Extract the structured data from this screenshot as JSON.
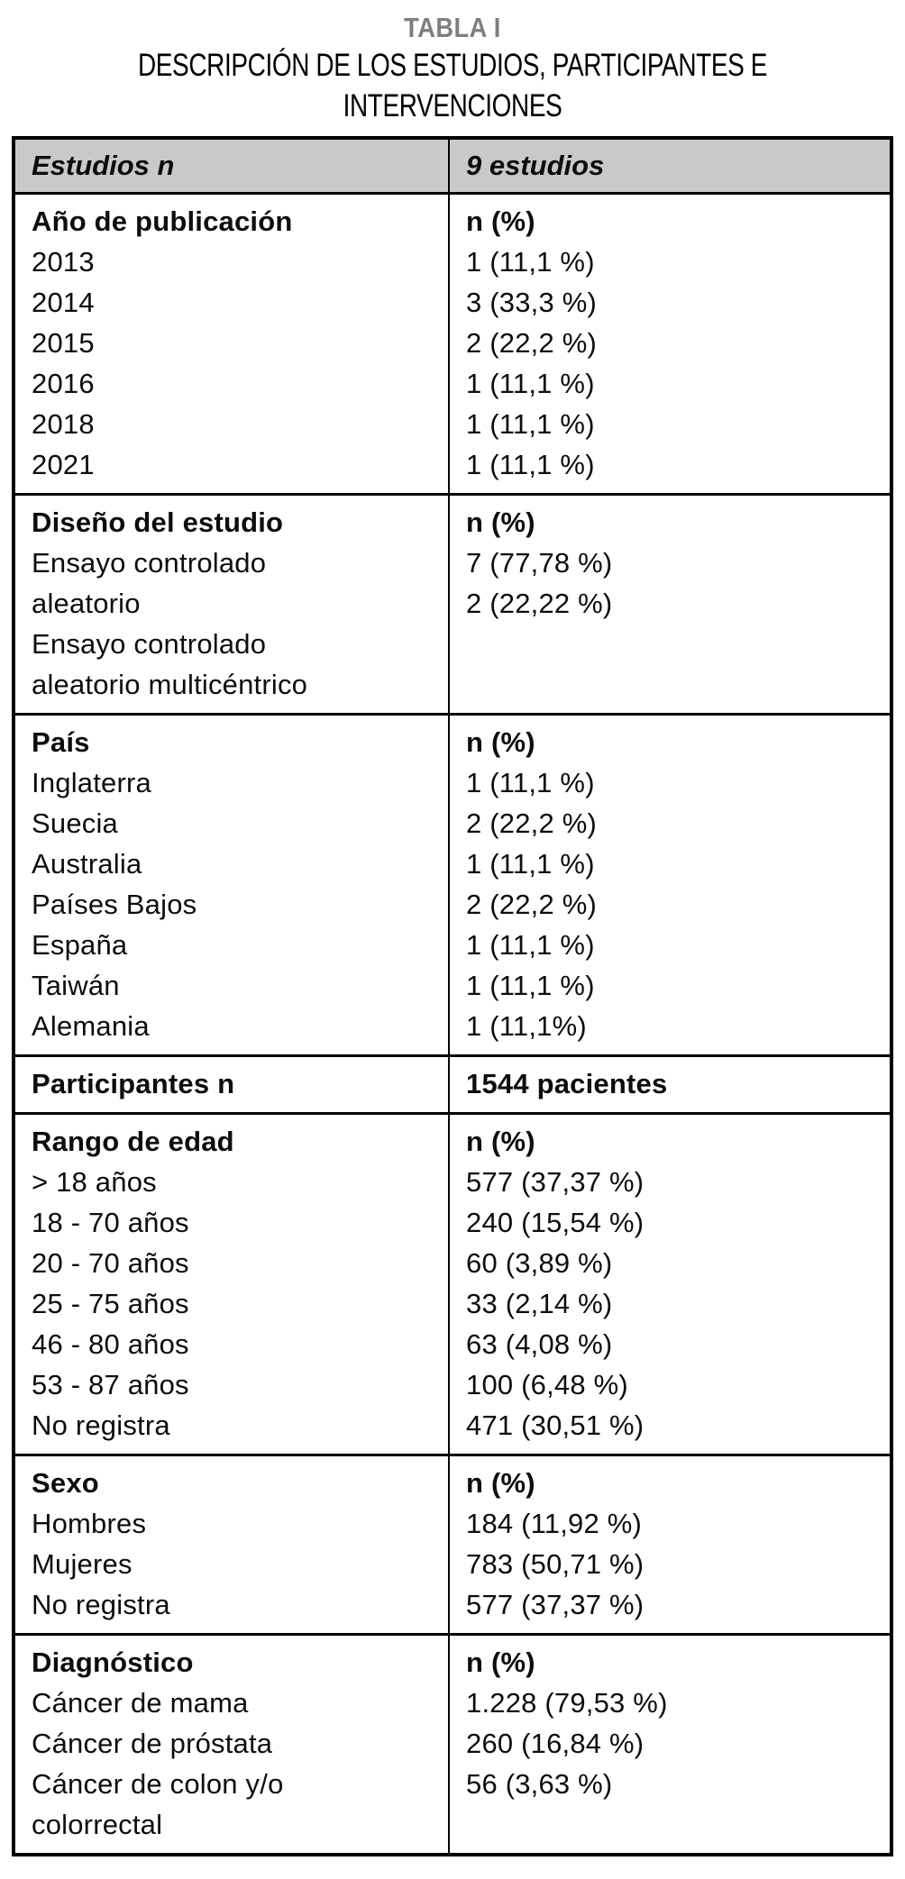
{
  "caption": {
    "title": "TABLA I",
    "subtitle_line1": "DESCRIPCIÓN DE LOS ESTUDIOS, PARTICIPANTES E",
    "subtitle_line2": "INTERVENCIONES"
  },
  "colors": {
    "title_gray": "#7e7e7e",
    "header_bg": "#c9c9c9",
    "border_black": "#000000",
    "text": "#0d0d0d"
  },
  "table": {
    "header": {
      "left": "Estudios n",
      "right": "9 estudios"
    },
    "sections": [
      {
        "name": "ano-de-publicacion",
        "left": [
          {
            "t": "Año de publicación",
            "b": true
          },
          {
            "t": "2013"
          },
          {
            "t": "2014"
          },
          {
            "t": "2015"
          },
          {
            "t": "2016"
          },
          {
            "t": "2018"
          },
          {
            "t": "2021"
          }
        ],
        "right": [
          {
            "t": "n (%)",
            "b": true
          },
          {
            "t": "1 (11,1 %)"
          },
          {
            "t": "3 (33,3 %)"
          },
          {
            "t": "2 (22,2 %)"
          },
          {
            "t": "1 (11,1 %)"
          },
          {
            "t": "1 (11,1 %)"
          },
          {
            "t": "1 (11,1 %)"
          }
        ]
      },
      {
        "name": "diseno-del-estudio",
        "left": [
          {
            "t": "Diseño del estudio",
            "b": true
          },
          {
            "t": "Ensayo controlado"
          },
          {
            "t": "aleatorio"
          },
          {
            "t": "Ensayo controlado"
          },
          {
            "t": "aleatorio multicéntrico"
          }
        ],
        "right": [
          {
            "t": "n (%)",
            "b": true
          },
          {
            "t": "7 (77,78 %)"
          },
          {
            "t": "2 (22,22 %)"
          }
        ]
      },
      {
        "name": "pais",
        "left": [
          {
            "t": "País",
            "b": true
          },
          {
            "t": "Inglaterra"
          },
          {
            "t": "Suecia"
          },
          {
            "t": "Australia"
          },
          {
            "t": "Países Bajos"
          },
          {
            "t": "España"
          },
          {
            "t": "Taiwán"
          },
          {
            "t": "Alemania"
          }
        ],
        "right": [
          {
            "t": "n (%)",
            "b": true
          },
          {
            "t": "1 (11,1 %)"
          },
          {
            "t": "2 (22,2 %)"
          },
          {
            "t": "1 (11,1 %)"
          },
          {
            "t": "2 (22,2 %)"
          },
          {
            "t": "1 (11,1 %)"
          },
          {
            "t": "1 (11,1 %)"
          },
          {
            "t": "1 (11,1%)"
          }
        ]
      },
      {
        "name": "participantes",
        "left": [
          {
            "t": "Participantes n",
            "b": true
          }
        ],
        "right": [
          {
            "t": "1544 pacientes",
            "b": true
          }
        ]
      },
      {
        "name": "rango-de-edad",
        "left": [
          {
            "t": "Rango de edad",
            "b": true
          },
          {
            "t": "> 18 años"
          },
          {
            "t": "18 - 70 años"
          },
          {
            "t": "20 - 70 años"
          },
          {
            "t": "25 - 75 años"
          },
          {
            "t": "46 - 80 años"
          },
          {
            "t": "53 - 87 años"
          },
          {
            "t": "No registra"
          }
        ],
        "right": [
          {
            "t": "n (%)",
            "b": true
          },
          {
            "t": "577 (37,37 %)"
          },
          {
            "t": "240 (15,54 %)"
          },
          {
            "t": "60 (3,89 %)"
          },
          {
            "t": "33 (2,14 %)"
          },
          {
            "t": "63 (4,08 %)"
          },
          {
            "t": "100 (6,48 %)"
          },
          {
            "t": "471 (30,51 %)"
          }
        ]
      },
      {
        "name": "sexo",
        "left": [
          {
            "t": "Sexo",
            "b": true
          },
          {
            "t": "Hombres"
          },
          {
            "t": "Mujeres"
          },
          {
            "t": "No registra"
          }
        ],
        "right": [
          {
            "t": "n (%)",
            "b": true
          },
          {
            "t": "184 (11,92 %)"
          },
          {
            "t": "783 (50,71 %)"
          },
          {
            "t": "577 (37,37 %)"
          }
        ]
      },
      {
        "name": "diagnostico",
        "left": [
          {
            "t": "Diagnóstico",
            "b": true
          },
          {
            "t": "Cáncer de mama"
          },
          {
            "t": "Cáncer de próstata"
          },
          {
            "t": "Cáncer de colon y/o"
          },
          {
            "t": "colorrectal"
          }
        ],
        "right": [
          {
            "t": "n (%)",
            "b": true
          },
          {
            "t": "1.228 (79,53 %)"
          },
          {
            "t": "260 (16,84 %)"
          },
          {
            "t": "56 (3,63 %)"
          }
        ]
      }
    ]
  }
}
